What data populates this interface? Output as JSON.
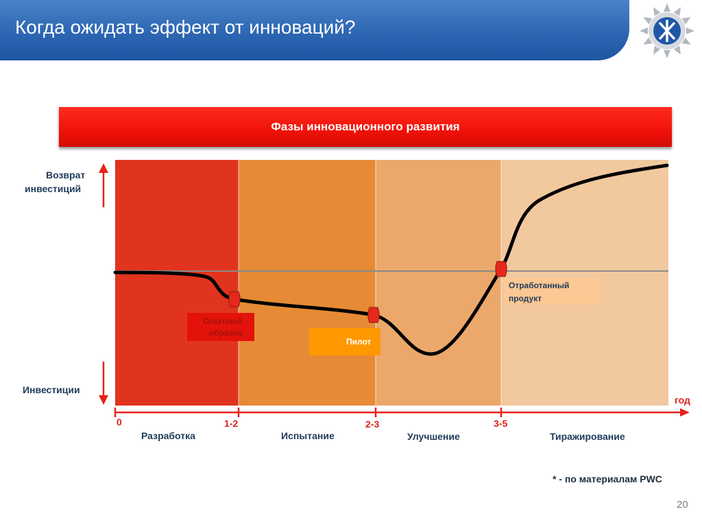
{
  "header": {
    "title": "Когда ожидать эффект от инноваций?"
  },
  "logo": {
    "icon": "company-logo-icon"
  },
  "banner": {
    "text": "Фазы инновационного развития"
  },
  "axis": {
    "y_top_label": [
      "Возврат",
      "инвестиций"
    ],
    "y_bottom_label": "Инвестиции",
    "x_label": "год"
  },
  "phases": [
    {
      "name": "Разработка",
      "color": "#e0341e"
    },
    {
      "name": "Испытание",
      "color": "#e68a35"
    },
    {
      "name": "Улучшение",
      "color": "#eba86a"
    },
    {
      "name": "Тиражирование",
      "color": "#f2c89e"
    }
  ],
  "ticks": [
    "0",
    "1-2",
    "2-3",
    "3-5"
  ],
  "milestones": {
    "prototype": [
      "Опытный",
      "образец"
    ],
    "pilot": "Пилот",
    "finished": [
      "Отработанный",
      "продукт"
    ]
  },
  "colors": {
    "accent_red": "#e8211a",
    "box_prototype": "#e3130a",
    "box_pilot": "#ff9800",
    "box_finished": "#fcc893",
    "marker": "#e6281c"
  },
  "footnote": "* - по материалам PWC",
  "page_number": "20"
}
